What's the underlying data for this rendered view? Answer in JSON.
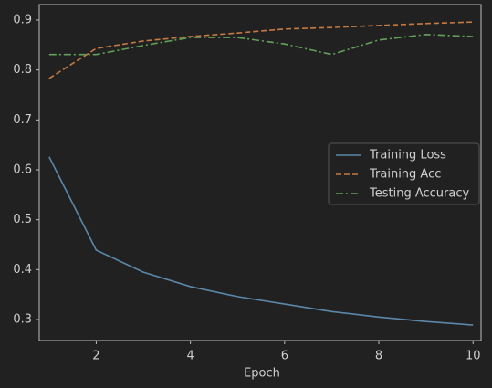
{
  "chart_data": {
    "type": "line",
    "x": [
      1,
      2,
      3,
      4,
      5,
      6,
      7,
      8,
      9,
      10
    ],
    "xlabel": "Epoch",
    "xlim": [
      0.79,
      10.17
    ],
    "xticks": [
      2,
      4,
      6,
      8,
      10
    ],
    "ylim": [
      0.258,
      0.931
    ],
    "yticks": [
      0.3,
      0.4,
      0.5,
      0.6,
      0.7,
      0.8,
      0.9
    ],
    "legend": "right",
    "series": [
      {
        "name": "Training Loss",
        "color": "#5b87a8",
        "linestyle": "solid",
        "values": [
          0.626,
          0.439,
          0.395,
          0.366,
          0.346,
          0.331,
          0.316,
          0.305,
          0.296,
          0.289
        ]
      },
      {
        "name": "Training Acc",
        "color": "#c47a44",
        "linestyle": "dashed",
        "values": [
          0.783,
          0.843,
          0.858,
          0.867,
          0.874,
          0.882,
          0.885,
          0.889,
          0.893,
          0.896
        ]
      },
      {
        "name": "Testing Accuracy",
        "color": "#63a05a",
        "linestyle": "dashdot",
        "values": [
          0.831,
          0.831,
          0.849,
          0.865,
          0.865,
          0.852,
          0.831,
          0.86,
          0.871,
          0.867
        ]
      }
    ]
  }
}
